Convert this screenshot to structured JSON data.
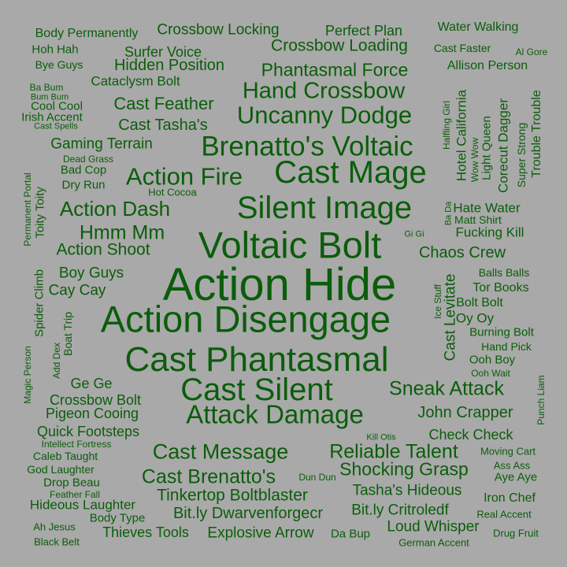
{
  "background": "#a9a9a9",
  "text_color": "#0b5d0b",
  "words": [
    "Action Hide",
    "Action Disengage",
    "Voltaic Bolt",
    "Cast Phantasmal",
    "Cast Silent",
    "Silent Image",
    "Cast Mage",
    "Brenatto's Voltaic",
    "Attack Damage",
    "Uncanny Dodge",
    "Hand Crossbow",
    "Action Fire",
    "Cast Message",
    "Reliable Talent",
    "Action Dash",
    "Sneak Attack",
    "Cast Brenatto's",
    "Hmm Mm",
    "Shocking Grasp",
    "Phantasmal Force",
    "Crossbow Loading",
    "Tinkertop Boltblaster",
    "Action Shoot",
    "Bit.ly Dwarvenforgecr",
    "Cast Feather",
    "John Crapper",
    "Crossbow Locking",
    "Chaos Crew",
    "Loud Whisper",
    "Gaming Terrain",
    "Hidden Position",
    "Cast Tasha's",
    "Explosive Arrow",
    "Bit.ly Critroledf",
    "Tasha's Hideous",
    "Quick Footsteps",
    "Perfect Plan",
    "Pigeon Cooing",
    "Surfer Voice",
    "Boy Guys",
    "Cast Levitate",
    "Crossbow Bolt",
    "Check Check",
    "Cataclysm Bolt",
    "Thieves Tools",
    "Cay Cay",
    "Hotel California",
    "Hate Water",
    "Fucking Kill",
    "Ge Ge",
    "Hideous Laughter",
    "Body Permanently",
    "Water Walking",
    "Allison Person",
    "Corecut Dagger",
    "Trouble Trouble",
    "Iron Chef",
    "Oy Oy",
    "Light Queen",
    "Tor Books",
    "Bolt Bolt",
    "Burning Bolt",
    "Aye Aye",
    "Caleb Taught",
    "Irish Accent",
    "Spider Climb",
    "God Laughter",
    "Toity Toity",
    "Cool Cool",
    "Drop Beau",
    "Dry Run",
    "Body Type",
    "Balls Balls",
    "Hand Pick",
    "Bad Cop",
    "Boat Trip",
    "Ooh Boy",
    "Hoh Hah",
    "Super Strong",
    "Cast Faster",
    "Matt Shirt",
    "Bye Guys",
    "German Accent",
    "Da Bup",
    "Halfling Girl",
    "Real Accent",
    "Drug Fruit",
    "Ice Stuff",
    "Black Belt",
    "Dun Dun",
    "Moving Cart",
    "Hot Cocoa",
    "Dead Grass",
    "Intellect Fortress",
    "Kill Otis",
    "Wow Wow",
    "Ah Jesus",
    "Feather Fall",
    "Ass Ass",
    "Ooh Wait",
    "Punch Liam",
    "Magic Person",
    "Add Dex",
    "Permanent Portal",
    "Ba Bum",
    "Bum Bum",
    "Cast Spells",
    "Al Gore",
    "Gi Gi",
    "Ba Da"
  ]
}
